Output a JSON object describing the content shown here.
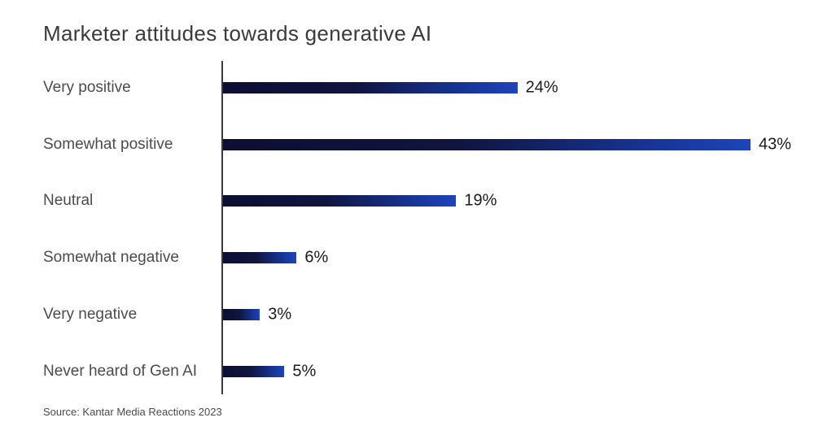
{
  "chart_data": {
    "type": "bar",
    "orientation": "horizontal",
    "title": "Marketer attitudes towards generative AI",
    "categories": [
      "Very positive",
      "Somewhat positive",
      "Neutral",
      "Somewhat negative",
      "Very negative",
      "Never heard of Gen AI"
    ],
    "values": [
      24,
      43,
      19,
      6,
      3,
      5
    ],
    "value_labels": [
      "24%",
      "43%",
      "19%",
      "6%",
      "3%",
      "5%"
    ],
    "unit": "%",
    "xlim": [
      0,
      45
    ],
    "grid": false,
    "legend": false,
    "source": "Source: Kantar Media Reactions 2023",
    "colors": {
      "bar_gradient_start": "#0c0e32",
      "bar_gradient_end": "#1d44ba",
      "axis": "#3a3a3a",
      "category_label": "#4c4c4e",
      "value_label": "#1a1a1c",
      "title": "#3b3b3d",
      "background": "#ffffff"
    }
  }
}
